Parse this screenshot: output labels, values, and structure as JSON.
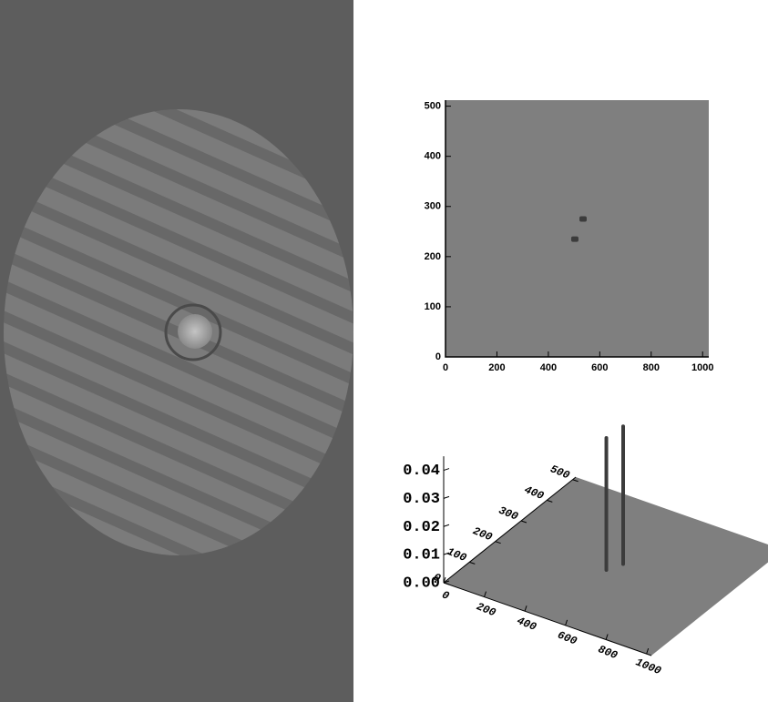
{
  "chart_data": [
    {
      "type": "scatter",
      "x": [
        535,
        503
      ],
      "y": [
        275,
        235
      ],
      "xlim": [
        0,
        1024
      ],
      "ylim": [
        0,
        512
      ],
      "xticks": [
        0,
        200,
        400,
        600,
        800,
        1000
      ],
      "yticks": [
        0,
        100,
        200,
        300,
        400,
        500
      ],
      "color": "#3c3c3c",
      "background": "#7f7f7f"
    },
    {
      "type": "surface3d",
      "x": [
        535,
        503
      ],
      "y": [
        275,
        235
      ],
      "values": [
        0.049,
        0.047
      ],
      "xlim": [
        0,
        1024
      ],
      "ylim": [
        0,
        512
      ],
      "zlim": [
        0,
        0.045
      ],
      "xticks": [
        0,
        200,
        400,
        600,
        800,
        1000
      ],
      "yticks": [
        0,
        100,
        200,
        300,
        400,
        500
      ],
      "zticks": [
        {
          "value": 0,
          "label": "0.00"
        },
        0.01,
        0.02,
        0.03,
        0.04
      ],
      "color": "#3c3c3c",
      "background": "#7f7f7f"
    }
  ]
}
